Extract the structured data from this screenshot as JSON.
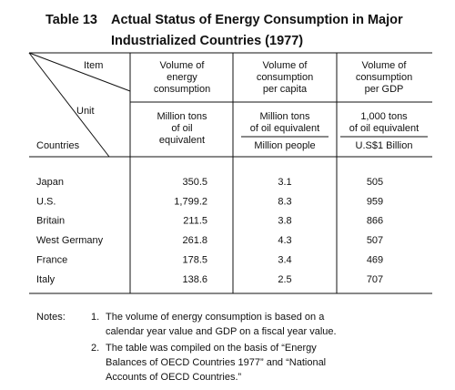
{
  "title": {
    "number": "Table 13",
    "lines": [
      "Actual Status of Energy Consumption in Major",
      "Industrialized Countries (1977)"
    ]
  },
  "table": {
    "corner": {
      "item": "Item",
      "unit": "Unit",
      "countries": "Countries"
    },
    "columns": [
      {
        "header": [
          "Volume of",
          "energy",
          "consumption"
        ],
        "unit": [
          "Million tons",
          "of oil",
          "equivalent"
        ]
      },
      {
        "header": [
          "Volume of",
          "consumption",
          "per capita"
        ],
        "unit": [
          "Million tons",
          "of oil equivalent"
        ],
        "unit_denominator": "Million people"
      },
      {
        "header": [
          "Volume of",
          "consumption",
          "per GDP"
        ],
        "unit": [
          "1,000 tons",
          "of oil equivalent"
        ],
        "unit_denominator": "U.S$1 Billion"
      }
    ],
    "rows": [
      [
        "Japan",
        "350.5",
        "3.1",
        "505"
      ],
      [
        "U.S.",
        "1,799.2",
        "8.3",
        "959"
      ],
      [
        "Britain",
        "211.5",
        "3.8",
        "866"
      ],
      [
        "West Germany",
        "261.8",
        "4.3",
        "507"
      ],
      [
        "France",
        "178.5",
        "3.4",
        "469"
      ],
      [
        "Italy",
        "138.6",
        "2.5",
        "707"
      ]
    ]
  },
  "notes": {
    "label": "Notes:",
    "items": [
      {
        "number": "1.",
        "lines": [
          "The volume of energy consumption is based on a",
          "calendar year value and GDP on a fiscal year value."
        ]
      },
      {
        "number": "2.",
        "lines": [
          "The table was compiled on the basis of “Energy",
          "Balances of OECD Countries 1977” and “National",
          "Accounts of OECD Countries.”"
        ]
      }
    ]
  }
}
